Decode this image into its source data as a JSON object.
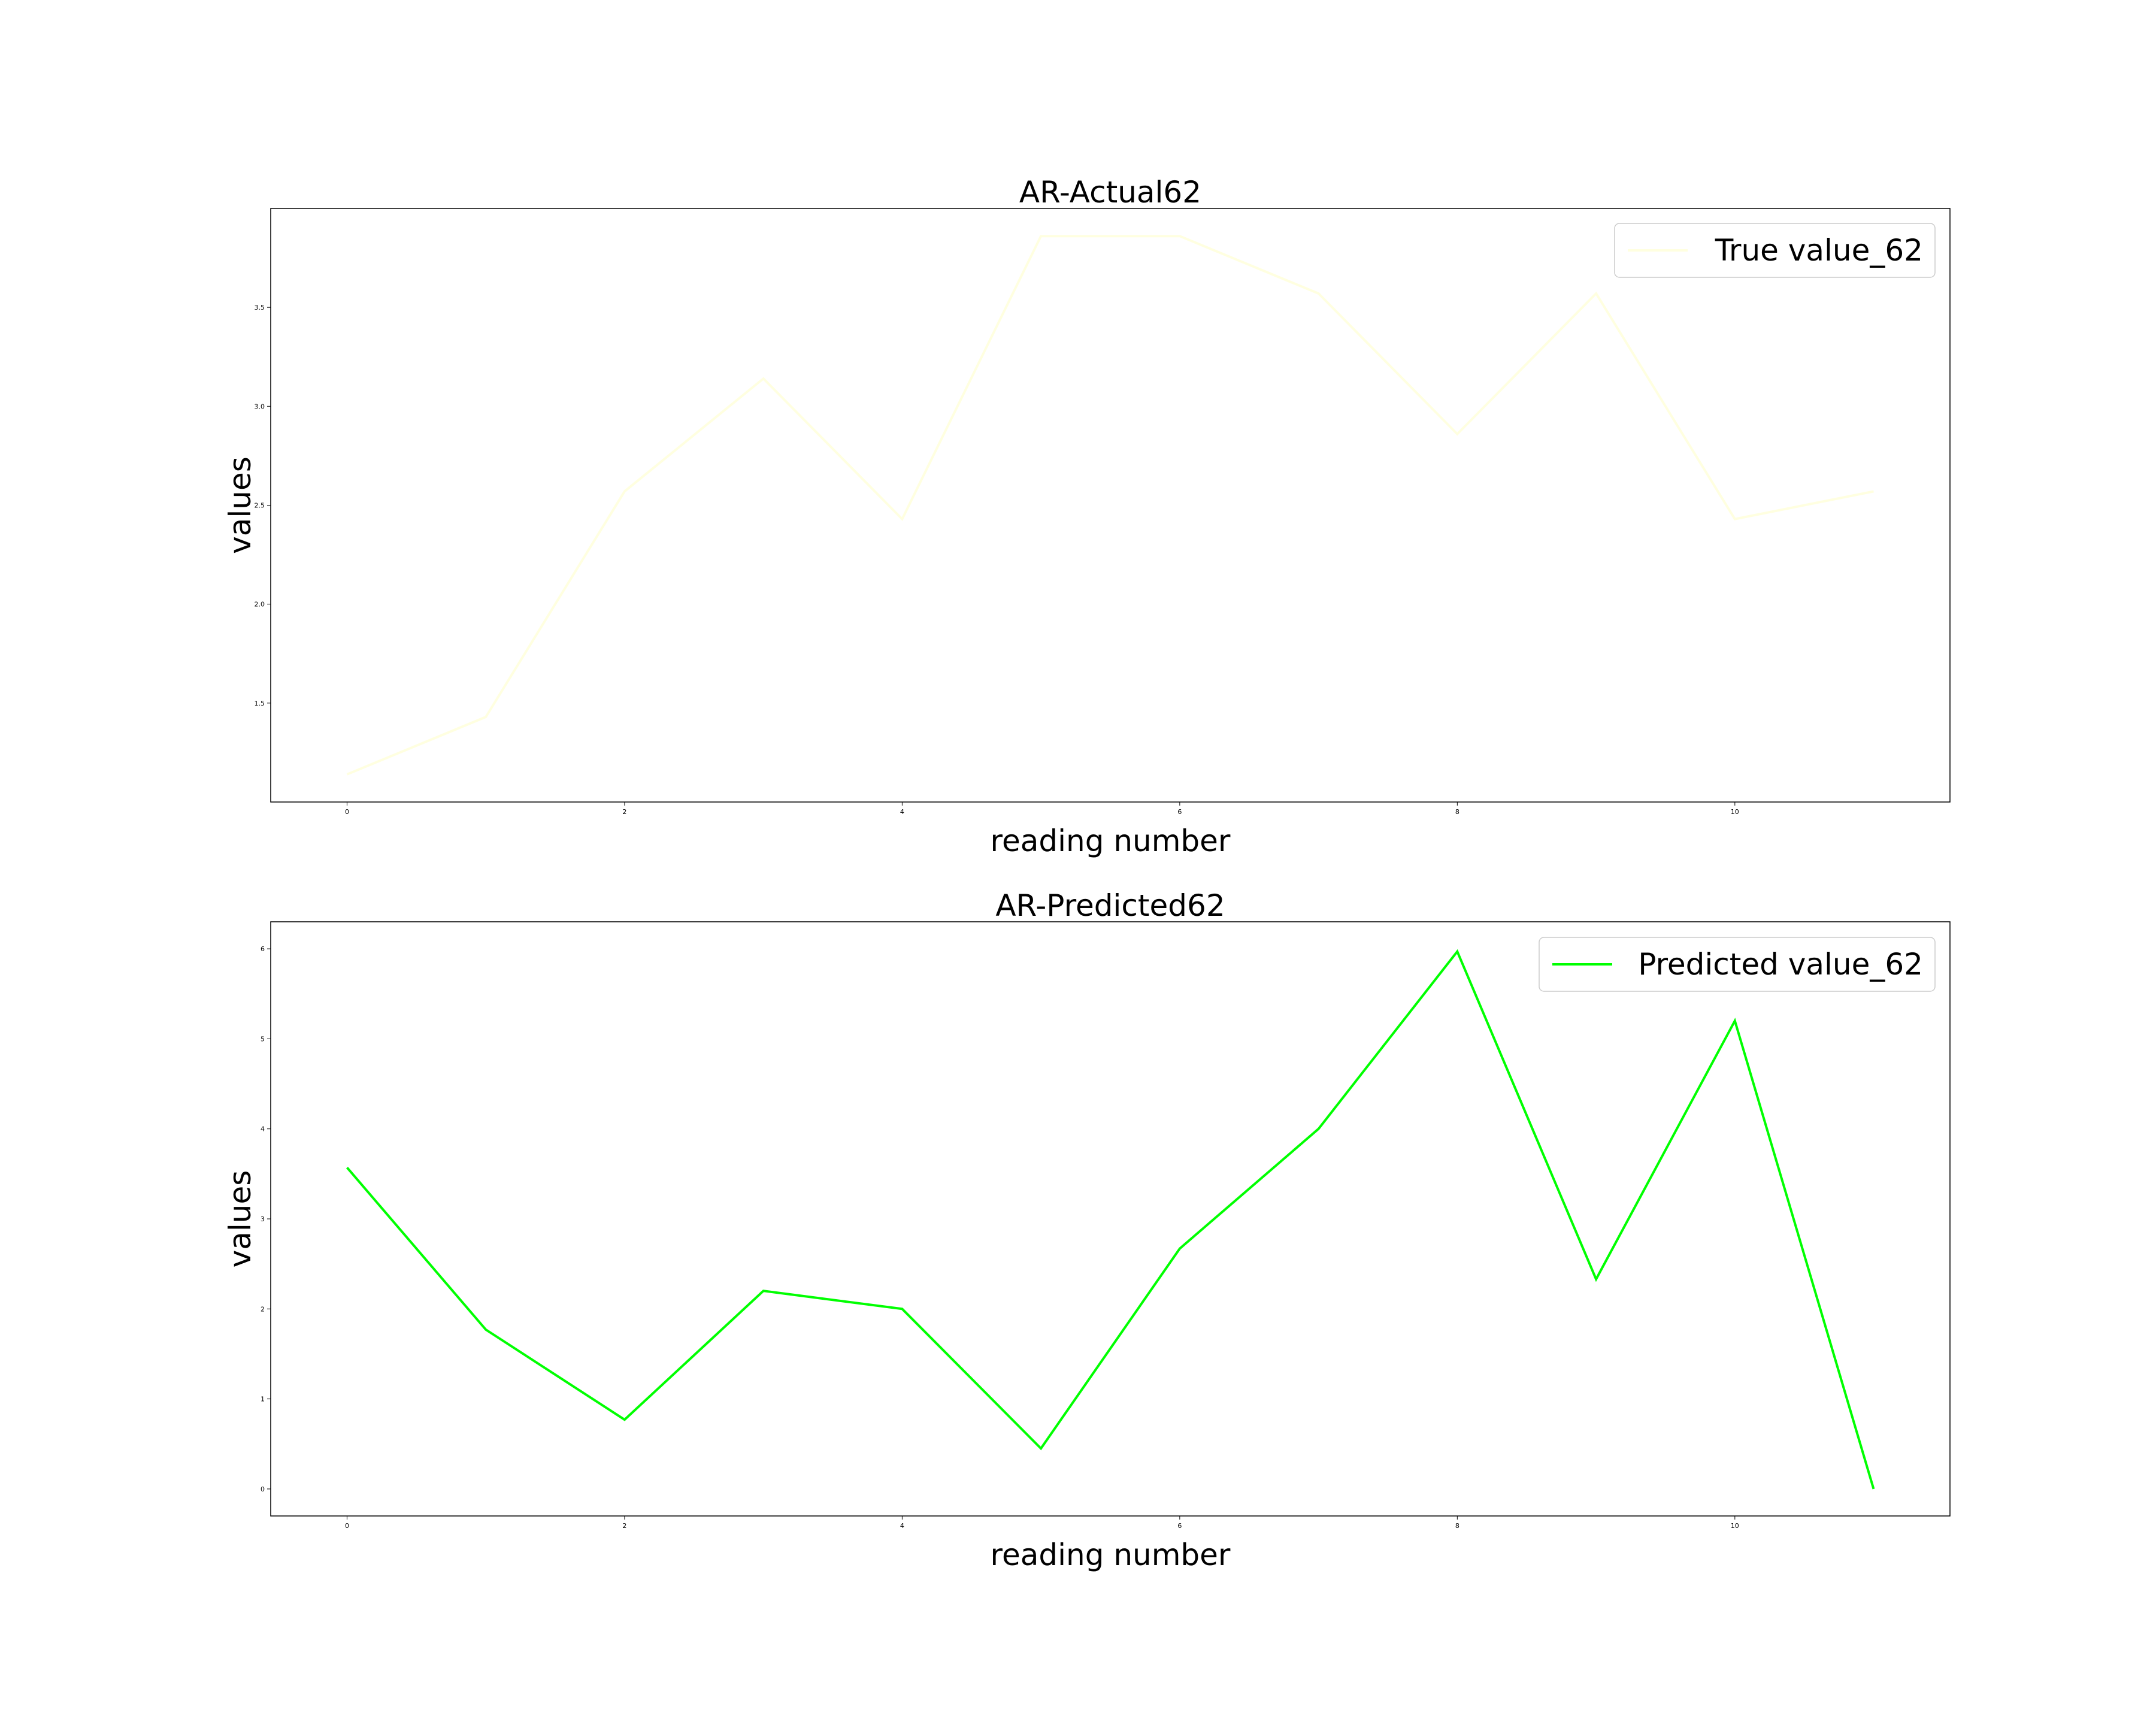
{
  "chart_data": [
    {
      "type": "line",
      "title": "AR-Actual62",
      "xlabel": "reading number",
      "ylabel": "values",
      "x": [
        0,
        1,
        2,
        3,
        4,
        5,
        6,
        7,
        8,
        9,
        10,
        11
      ],
      "xticks": [
        0,
        2,
        4,
        6,
        8,
        10
      ],
      "yticks": [
        1.5,
        2.0,
        2.5,
        3.0,
        3.5
      ],
      "xlim": [
        -0.55,
        11.55
      ],
      "ylim": [
        1.0,
        4.0
      ],
      "series": [
        {
          "name": "True value_62",
          "color": "#ffffe0",
          "values": [
            1.14,
            1.43,
            2.57,
            3.14,
            2.43,
            3.86,
            3.86,
            3.57,
            2.86,
            3.57,
            2.43,
            2.57
          ]
        }
      ],
      "legend": "top-right",
      "grid": false
    },
    {
      "type": "line",
      "title": "AR-Predicted62",
      "xlabel": "reading number",
      "ylabel": "values",
      "x": [
        0,
        1,
        2,
        3,
        4,
        5,
        6,
        7,
        8,
        9,
        10,
        11
      ],
      "xticks": [
        0,
        2,
        4,
        6,
        8,
        10
      ],
      "yticks": [
        0,
        1,
        2,
        3,
        4,
        5,
        6
      ],
      "xlim": [
        -0.55,
        11.55
      ],
      "ylim": [
        -0.3,
        6.3
      ],
      "series": [
        {
          "name": "Predicted value_62",
          "color": "#00ff00",
          "values": [
            3.57,
            1.77,
            0.77,
            2.2,
            2.0,
            0.45,
            2.67,
            4.0,
            5.97,
            2.33,
            5.2,
            0.0
          ]
        }
      ],
      "legend": "top-right",
      "grid": false
    }
  ]
}
